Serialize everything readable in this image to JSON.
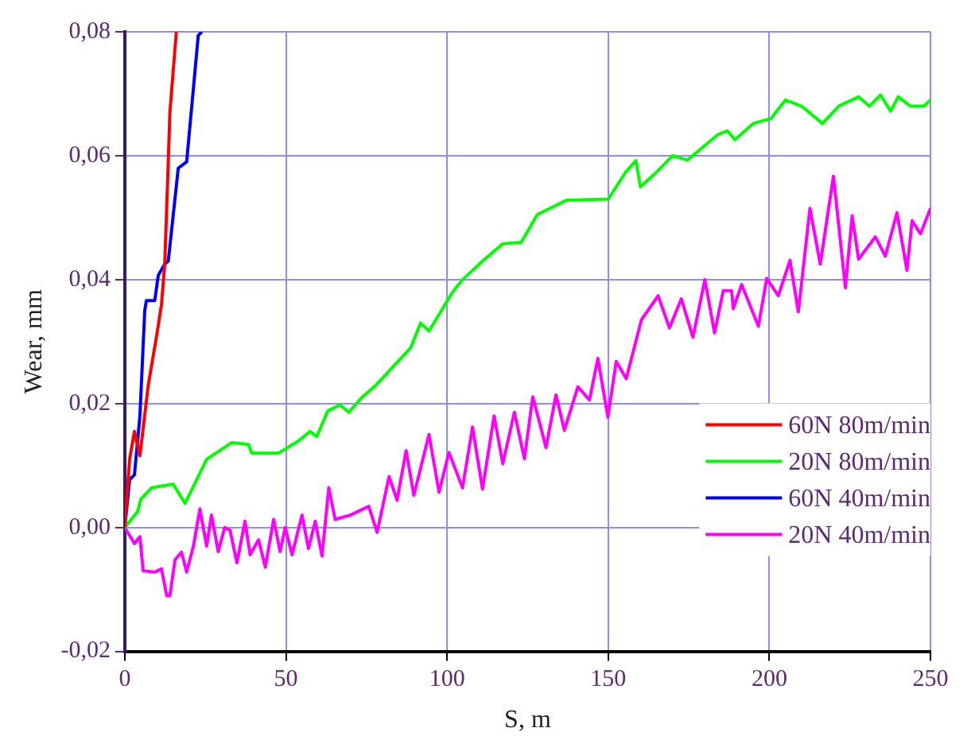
{
  "chart_data": {
    "type": "line",
    "xlabel": "S, m",
    "ylabel": "Wear, mm",
    "xlim": [
      0,
      250
    ],
    "ylim": [
      -0.02,
      0.08
    ],
    "xticks": [
      0,
      50,
      100,
      150,
      200,
      250
    ],
    "yticks": [
      {
        "value": -0.02,
        "label": "-0,02"
      },
      {
        "value": 0,
        "label": "0,00"
      },
      {
        "value": 0.02,
        "label": "0,02"
      },
      {
        "value": 0.04,
        "label": "0,04"
      },
      {
        "value": 0.06,
        "label": "0,06"
      },
      {
        "value": 0.08,
        "label": "0,08"
      }
    ],
    "grid": true,
    "legend": "bottom right",
    "marker": "none",
    "line_style": "solid",
    "series": [
      {
        "name": "60N 80m/min",
        "color": "#ff0000",
        "x": [
          0,
          1.5,
          3,
          4.7,
          7.3,
          9.9,
          11.4,
          12.4,
          13.5,
          14,
          16
        ],
        "values": [
          0,
          0.011,
          0.0155,
          0.0116,
          0.023,
          0.031,
          0.036,
          0.0425,
          0.059,
          0.067,
          0.08
        ]
      },
      {
        "name": "20N 80m/min",
        "color": "#00ff00",
        "x": [
          0,
          4,
          5,
          8.3,
          15,
          18.7,
          25.4,
          33.2,
          38.4,
          39.4,
          47.7,
          54,
          57.5,
          59.6,
          63,
          66.8,
          69.5,
          73.6,
          78,
          88.7,
          91.8,
          94.4,
          101.7,
          104.8,
          111,
          117.3,
          123,
          128,
          137,
          150,
          155.5,
          158.6,
          160,
          164.3,
          170,
          174.6,
          180.8,
          184,
          187,
          189.3,
          195,
          200.5,
          205,
          210,
          216.5,
          221.5,
          227.7,
          231,
          234.5,
          237.6,
          240,
          243.8,
          248,
          250
        ],
        "values": [
          0,
          0.0026,
          0.0046,
          0.0064,
          0.007,
          0.0039,
          0.011,
          0.0137,
          0.0134,
          0.012,
          0.012,
          0.014,
          0.0155,
          0.0147,
          0.0188,
          0.0198,
          0.0186,
          0.021,
          0.023,
          0.029,
          0.033,
          0.0317,
          0.038,
          0.04,
          0.043,
          0.0458,
          0.046,
          0.0505,
          0.0528,
          0.053,
          0.0574,
          0.0592,
          0.055,
          0.057,
          0.06,
          0.0593,
          0.062,
          0.0634,
          0.064,
          0.0626,
          0.0652,
          0.066,
          0.069,
          0.068,
          0.0652,
          0.068,
          0.0695,
          0.068,
          0.0698,
          0.0672,
          0.0695,
          0.068,
          0.068,
          0.069
        ]
      },
      {
        "name": "60N 40m/min",
        "color": "#0000ff",
        "x": [
          0,
          1.5,
          3,
          4.7,
          6.2,
          6.7,
          9.3,
          10.4,
          12.4,
          13.5,
          16.6,
          19.2,
          22.8,
          23.9
        ],
        "values": [
          0,
          0.0077,
          0.0085,
          0.018,
          0.035,
          0.0366,
          0.0366,
          0.0407,
          0.0425,
          0.043,
          0.058,
          0.059,
          0.0794,
          0.08
        ]
      },
      {
        "name": "20N 40m/min",
        "color": "#ff00ff",
        "x": [
          0,
          3,
          4.7,
          5.7,
          9.3,
          11.4,
          13,
          14,
          15.6,
          17.6,
          19.2,
          21.3,
          23.3,
          25.4,
          26.9,
          29,
          31,
          32.7,
          34.8,
          37.3,
          38.9,
          41.5,
          43.6,
          46.2,
          48.2,
          49.8,
          51.9,
          55,
          57,
          59.1,
          61.2,
          63.3,
          65.3,
          70,
          75.7,
          78.3,
          82,
          84.5,
          87.3,
          89.7,
          94.4,
          97.5,
          100.6,
          104.8,
          107.9,
          111,
          114.6,
          117.3,
          120.9,
          124,
          126.6,
          130.7,
          133.8,
          136.4,
          140.6,
          144.2,
          146.8,
          149.9,
          152.5,
          155.6,
          160.3,
          165.5,
          169,
          172.7,
          176.3,
          180,
          183,
          185.7,
          188.3,
          188.8,
          191.4,
          196.6,
          199.2,
          202.8,
          206.4,
          209,
          212.6,
          215.8,
          219.9,
          223.6,
          225.7,
          227.7,
          232.9,
          236,
          239.6,
          242.7,
          244.3,
          246.9,
          250
        ],
        "values": [
          0,
          -0.0026,
          -0.0015,
          -0.007,
          -0.0072,
          -0.0067,
          -0.011,
          -0.011,
          -0.0052,
          -0.004,
          -0.0072,
          -0.003,
          0.003,
          -0.003,
          0.002,
          -0.0039,
          0,
          -0.0005,
          -0.0057,
          0.001,
          -0.0044,
          -0.002,
          -0.0064,
          0.0013,
          -0.0039,
          0,
          -0.0044,
          0.002,
          -0.0034,
          0.001,
          -0.0046,
          0.0064,
          0.0013,
          0.002,
          0.0034,
          -0.0008,
          0.0082,
          0.0044,
          0.0124,
          0.0052,
          0.015,
          0.0057,
          0.0121,
          0.0064,
          0.0162,
          0.0062,
          0.018,
          0.0103,
          0.0186,
          0.0111,
          0.0211,
          0.0129,
          0.0214,
          0.0157,
          0.0227,
          0.0206,
          0.0273,
          0.0178,
          0.0268,
          0.024,
          0.0335,
          0.0374,
          0.0322,
          0.0369,
          0.0307,
          0.04,
          0.0314,
          0.0382,
          0.0382,
          0.0353,
          0.0392,
          0.0325,
          0.0402,
          0.0374,
          0.0431,
          0.0348,
          0.0515,
          0.0425,
          0.0567,
          0.0387,
          0.0503,
          0.0433,
          0.0469,
          0.0438,
          0.0508,
          0.0415,
          0.0495,
          0.0474,
          0.0515
        ]
      }
    ]
  }
}
